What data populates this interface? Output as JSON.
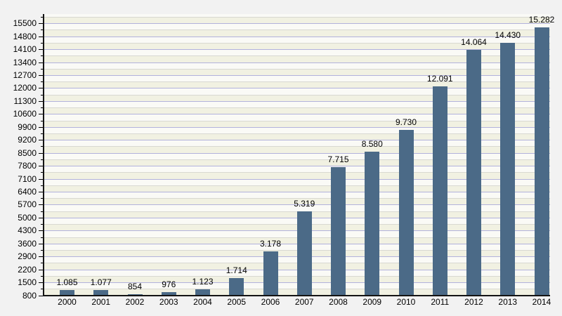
{
  "chart_data": {
    "type": "bar",
    "title": "",
    "xlabel": "",
    "ylabel": "",
    "categories": [
      "2000",
      "2001",
      "2002",
      "2003",
      "2004",
      "2005",
      "2006",
      "2007",
      "2008",
      "2009",
      "2010",
      "2011",
      "2012",
      "2013",
      "2014"
    ],
    "values": [
      1085,
      1077,
      854,
      976,
      1123,
      1714,
      3178,
      5319,
      7715,
      8580,
      9730,
      12091,
      14064,
      14430,
      15282
    ],
    "value_labels": [
      "1.085",
      "1.077",
      "854",
      "976",
      "1.123",
      "1.714",
      "3.178",
      "5.319",
      "7.715",
      "8.580",
      "9.730",
      "12.091",
      "14.064",
      "14.430",
      "15.282"
    ],
    "ylim": [
      800,
      15500
    ],
    "y_major_step": 700,
    "y_minor_step": 350,
    "y_tick_labels": [
      "800",
      "1500",
      "2200",
      "2900",
      "3600",
      "4300",
      "5000",
      "5700",
      "6400",
      "7100",
      "7800",
      "8500",
      "9200",
      "9900",
      "10600",
      "11300",
      "12000",
      "12700",
      "13400",
      "14100",
      "14800",
      "15500"
    ],
    "grid": "horizontal, major and minor lines, banded background",
    "legend": "none"
  },
  "colors": {
    "page_background": "#f2f2f2",
    "band_white": "#fafaf6",
    "band_cream": "#f1f1e2",
    "gridline_major": "#b2b2dc",
    "gridline_minor": "#d8d8d2",
    "bar": "#4b6a87",
    "axis": "#141414",
    "text": "#000000"
  }
}
